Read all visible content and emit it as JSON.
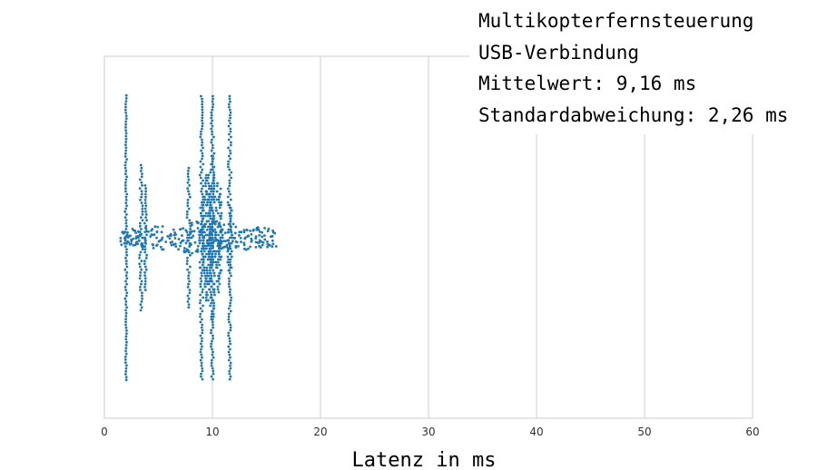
{
  "chart_data": {
    "type": "swarm",
    "title_lines": [
      "Multikopterfernsteuerung",
      "USB-Verbindung",
      "Mittelwert: 9,16 ms",
      "Standardabweichung: 2,26 ms"
    ],
    "xlabel": "Latenz in ms",
    "ylabel": "",
    "xlim": [
      0,
      60
    ],
    "xticks": [
      "0",
      "10",
      "20",
      "30",
      "40",
      "50",
      "60"
    ],
    "grid": "vertical",
    "point_color": "#1f77b4",
    "approx_value_clusters_ms": [
      {
        "center": 2.0,
        "range": [
          1.8,
          2.3
        ]
      },
      {
        "center": 3.6,
        "range": [
          3.0,
          4.2
        ]
      },
      {
        "center": 7.9,
        "range": [
          7.5,
          8.3
        ]
      },
      {
        "center": 9.0,
        "range": [
          8.6,
          9.3
        ]
      },
      {
        "center": 10.0,
        "range": [
          9.6,
          10.4
        ]
      },
      {
        "center": 11.6,
        "range": [
          11.2,
          12.0
        ]
      }
    ],
    "min_ms": 1.5,
    "max_ms": 15.9
  }
}
